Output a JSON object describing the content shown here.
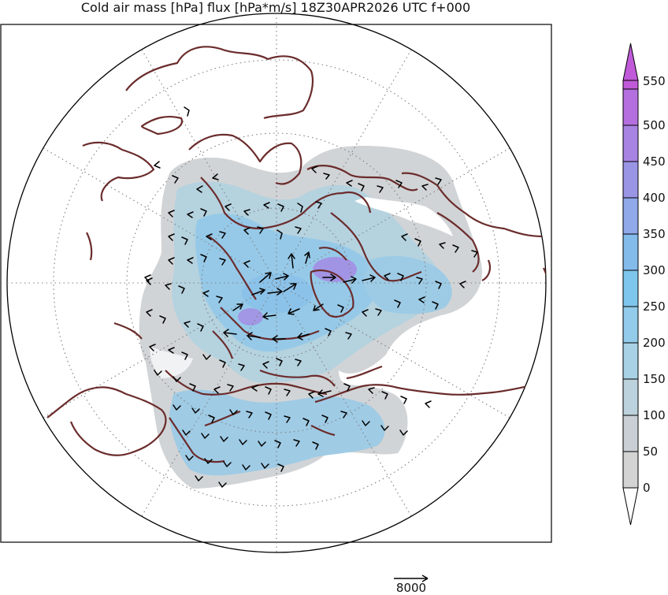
{
  "title": "Cold air mass [hPa] flux [hPa*m/s] 18Z30APR2026 UTC f+000",
  "colorbar": {
    "ticks": [
      "0",
      "50",
      "100",
      "150",
      "200",
      "250",
      "300",
      "350",
      "400",
      "450",
      "500",
      "550"
    ],
    "colors": [
      "#d3d3d3",
      "#c9cfd4",
      "#bcd2dd",
      "#a9d1e5",
      "#93cbea",
      "#7fc6ec",
      "#83bbeb",
      "#8fa9e9",
      "#9b95e6",
      "#a883e2",
      "#b46fde",
      "#c05ad8"
    ],
    "extend": "both"
  },
  "vector_key": {
    "label": "8000"
  },
  "map": {
    "projection": "north polar stereographic",
    "frame_color": "#000000",
    "coast_color": "#6b2c2c",
    "grid": "dotted"
  }
}
